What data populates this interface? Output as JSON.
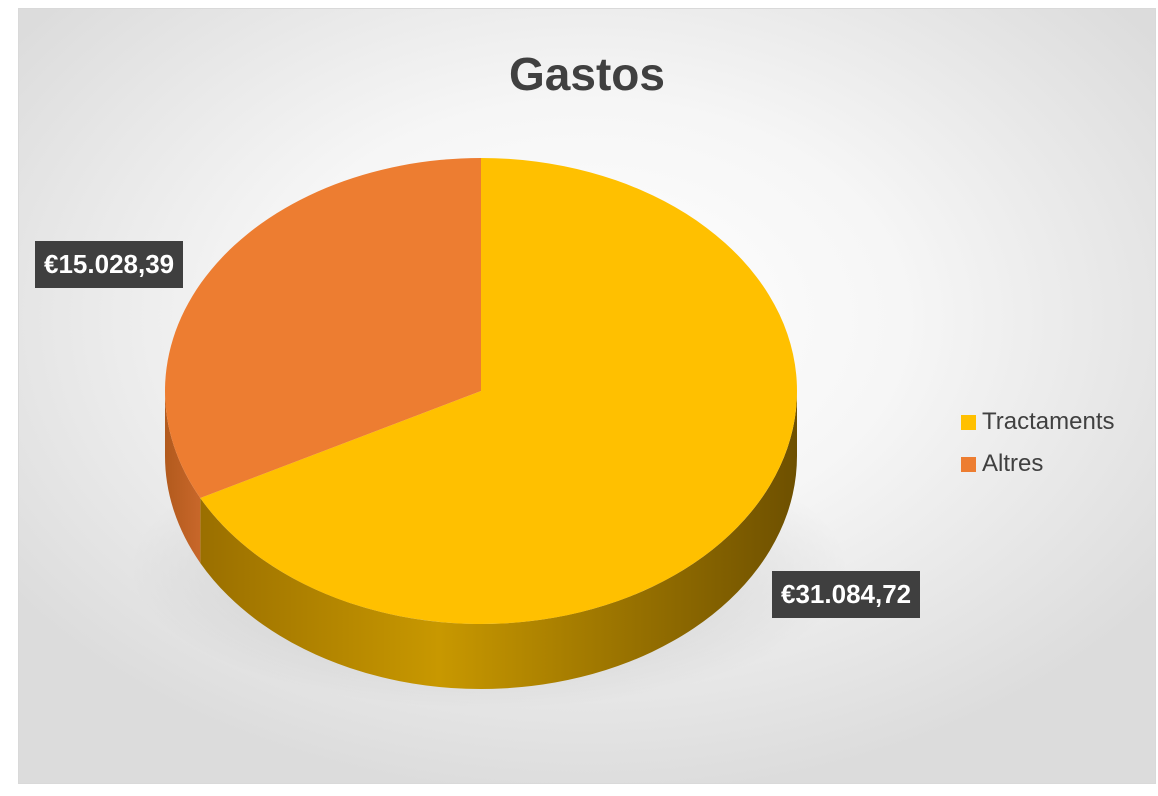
{
  "chart_data": {
    "type": "pie",
    "title": "Gastos",
    "slices": [
      {
        "name": "Tractaments",
        "value": 31084.72,
        "label": "€31.084,72",
        "color": "#FFC000"
      },
      {
        "name": "Altres",
        "value": 15028.39,
        "label": "€15.028,39",
        "color": "#ED7D31"
      }
    ],
    "legend": {
      "placement": "right"
    },
    "style": "3d"
  }
}
